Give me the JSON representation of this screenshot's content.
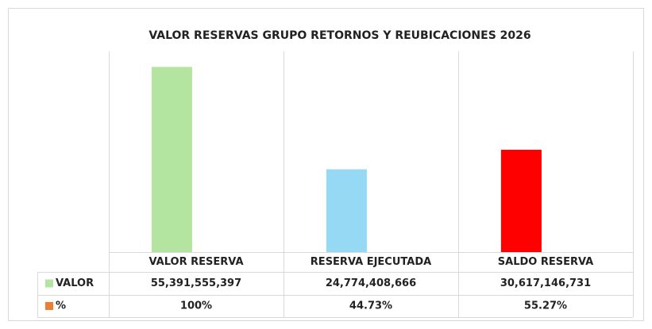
{
  "chart_data": {
    "type": "bar",
    "title": "VALOR RESERVAS GRUPO RETORNOS Y REUBICACIONES 2026",
    "categories": [
      "VALOR RESERVA",
      "RESERVA EJECUTADA",
      "SALDO RESERVA"
    ],
    "series": [
      {
        "name": "VALOR",
        "colors": [
          "#b3e4a0",
          "#95d9f4",
          "#ff0000"
        ],
        "legend_color": "#b3e4a0",
        "values": [
          55391555397,
          24774408666,
          30617146731
        ],
        "value_labels": [
          "55,391,555,397",
          "24,774,408,666",
          "30,617,146,731"
        ]
      },
      {
        "name": "%",
        "color": "#ed7d31",
        "values": [
          100,
          44.73,
          55.27
        ],
        "value_labels": [
          "100%",
          "44.73%",
          "55.27%"
        ]
      }
    ],
    "ylim": [
      0,
      60000000000
    ]
  }
}
